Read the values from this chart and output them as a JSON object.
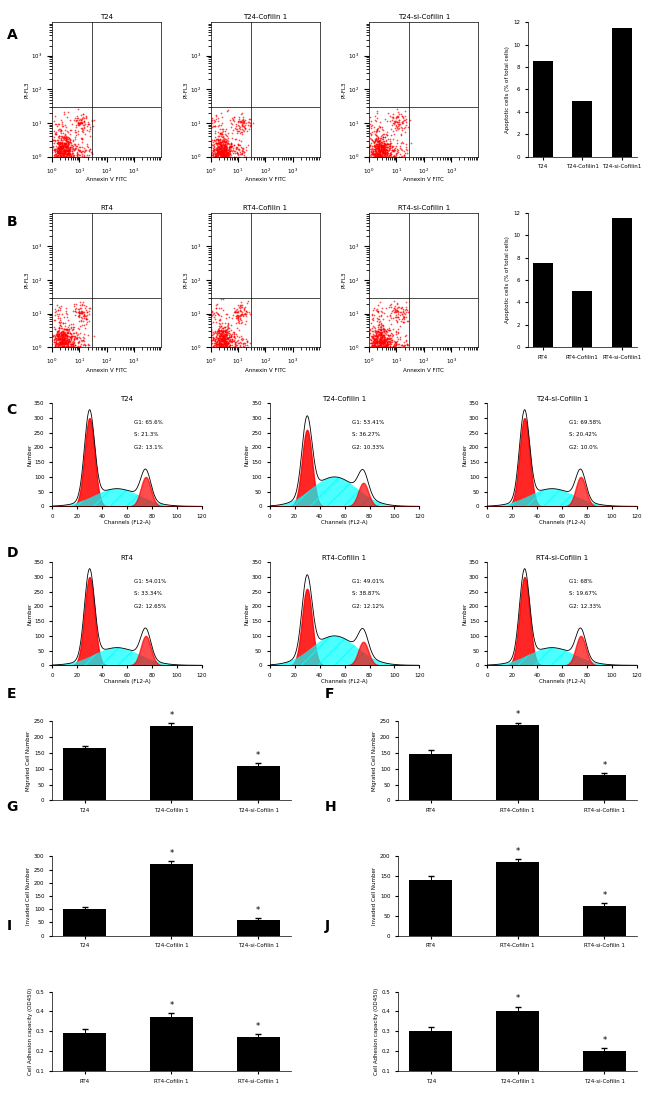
{
  "panel_A_bar": {
    "categories": [
      "T24",
      "T24-Cofilin1",
      "T24-si-Cofilin1"
    ],
    "values": [
      8.5,
      5.0,
      11.5
    ],
    "ylim": [
      0,
      12
    ],
    "ylabel": "Apoptotic cells (% of total cells)"
  },
  "panel_B_bar": {
    "categories": [
      "RT4",
      "RT4-Cofilin1",
      "RT4-si-Cofilin1"
    ],
    "values": [
      7.5,
      5.0,
      11.5
    ],
    "ylim": [
      0,
      12
    ],
    "ylabel": "Apoptotic cells (% of total cells)"
  },
  "panel_C_texts": [
    {
      "label": "T24",
      "G1": "65.6%",
      "S": "21.3%",
      "G2": "13.1%"
    },
    {
      "label": "T24-Cofilin 1",
      "G1": "53.41%",
      "S": "36.27%",
      "G2": "10.33%"
    },
    {
      "label": "T24-si-Cofilin 1",
      "G1": "69.58%",
      "S": "20.42%",
      "G2": "10.0%"
    }
  ],
  "panel_D_texts": [
    {
      "label": "RT4",
      "G1": "54.01%",
      "S": "33.34%",
      "G2": "12.65%"
    },
    {
      "label": "RT4-Cofilin 1",
      "G1": "49.01%",
      "S": "38.87%",
      "G2": "12.12%"
    },
    {
      "label": "RT4-si-Cofilin 1",
      "G1": "68%",
      "S": "19.67%",
      "G2": "12.33%"
    }
  ],
  "panel_E": {
    "categories": [
      "T24",
      "T24-Cofilin 1",
      "T24-si-Cofilin 1"
    ],
    "values": [
      165,
      235,
      110
    ],
    "yerr": [
      8,
      10,
      7
    ],
    "ylim": [
      0,
      250
    ],
    "ylabel": "Migrated Cell Number"
  },
  "panel_F": {
    "categories": [
      "RT4",
      "RT4-Cofilin 1",
      "RT4-si-Cofilin 1"
    ],
    "values": [
      148,
      238,
      80
    ],
    "yerr": [
      10,
      8,
      7
    ],
    "ylim": [
      0,
      250
    ],
    "ylabel": "Migrated Cell Number"
  },
  "panel_G": {
    "categories": [
      "T24",
      "T24-Cofilin 1",
      "T24-si-Cofilin 1"
    ],
    "values": [
      100,
      270,
      60
    ],
    "yerr": [
      8,
      12,
      6
    ],
    "ylim": [
      0,
      300
    ],
    "ylabel": "Invaded Cell Number"
  },
  "panel_H": {
    "categories": [
      "RT4",
      "RT4-Cofilin 1",
      "RT4-si-Cofilin 1"
    ],
    "values": [
      140,
      185,
      75
    ],
    "yerr": [
      10,
      9,
      7
    ],
    "ylim": [
      0,
      200
    ],
    "ylabel": "Invaded Cell Number"
  },
  "panel_I": {
    "categories": [
      "RT4",
      "RT4-Cofilin 1",
      "RT4-si-Cofilin 1"
    ],
    "values": [
      0.29,
      0.37,
      0.27
    ],
    "yerr": [
      0.02,
      0.02,
      0.015
    ],
    "ylim": [
      0.1,
      0.5
    ],
    "ylabel": "Cell Adhesion capacity (OD450)"
  },
  "panel_J": {
    "categories": [
      "T24",
      "T24-Cofilin 1",
      "T24-si-Cofilin 1"
    ],
    "values": [
      0.3,
      0.4,
      0.2
    ],
    "yerr": [
      0.02,
      0.025,
      0.015
    ],
    "ylim": [
      0.1,
      0.5
    ],
    "ylabel": "Cell Adhesion capacity (OD450)"
  },
  "bar_color": "#000000",
  "dot_color": "#ff0000",
  "scatter_bg": "#ffffff"
}
